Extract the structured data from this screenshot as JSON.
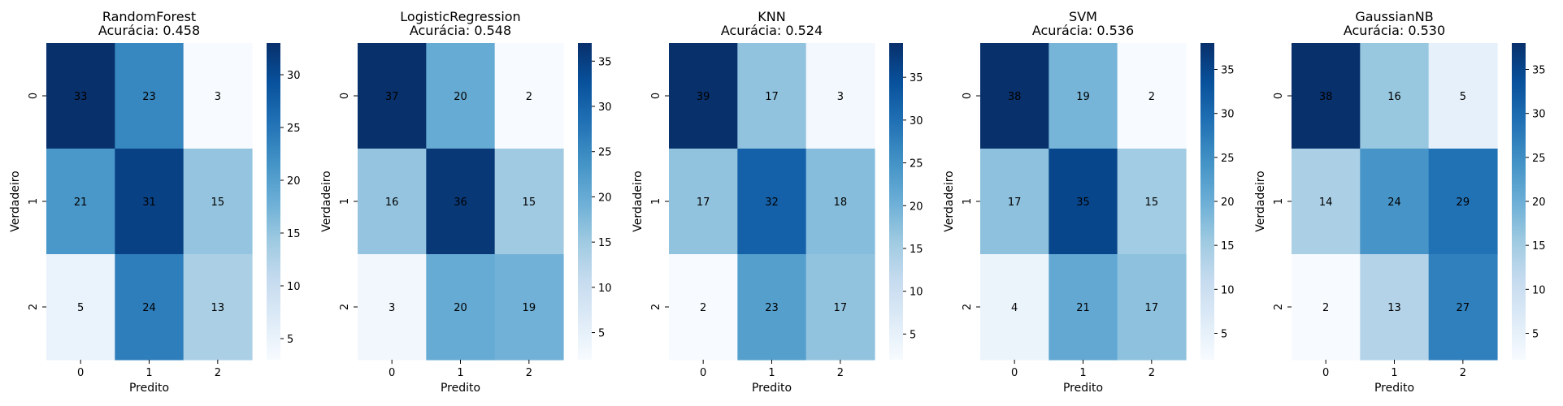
{
  "chart_data": [
    {
      "type": "heatmap",
      "model": "RandomForest",
      "accuracy_label": "Acurácia: 0.458",
      "xlabel": "Predito",
      "ylabel": "Verdadeiro",
      "x_ticks": [
        "0",
        "1",
        "2"
      ],
      "y_ticks": [
        "0",
        "1",
        "2"
      ],
      "matrix": [
        [
          33,
          23,
          3
        ],
        [
          21,
          31,
          15
        ],
        [
          5,
          24,
          13
        ]
      ],
      "vmin": 3,
      "vmax": 33,
      "colorbar_ticks": [
        5,
        10,
        15,
        20,
        25,
        30
      ],
      "colormap": "Blues"
    },
    {
      "type": "heatmap",
      "model": "LogisticRegression",
      "accuracy_label": "Acurácia: 0.548",
      "xlabel": "Predito",
      "ylabel": "Verdadeiro",
      "x_ticks": [
        "0",
        "1",
        "2"
      ],
      "y_ticks": [
        "0",
        "1",
        "2"
      ],
      "matrix": [
        [
          37,
          20,
          2
        ],
        [
          16,
          36,
          15
        ],
        [
          3,
          20,
          19
        ]
      ],
      "vmin": 2,
      "vmax": 37,
      "colorbar_ticks": [
        5,
        10,
        15,
        20,
        25,
        30,
        35
      ],
      "colormap": "Blues"
    },
    {
      "type": "heatmap",
      "model": "KNN",
      "accuracy_label": "Acurácia: 0.524",
      "xlabel": "Predito",
      "ylabel": "Verdadeiro",
      "x_ticks": [
        "0",
        "1",
        "2"
      ],
      "y_ticks": [
        "0",
        "1",
        "2"
      ],
      "matrix": [
        [
          39,
          17,
          3
        ],
        [
          17,
          32,
          18
        ],
        [
          2,
          23,
          17
        ]
      ],
      "vmin": 2,
      "vmax": 39,
      "colorbar_ticks": [
        5,
        10,
        15,
        20,
        25,
        30,
        35
      ],
      "colormap": "Blues"
    },
    {
      "type": "heatmap",
      "model": "SVM",
      "accuracy_label": "Acurácia: 0.536",
      "xlabel": "Predito",
      "ylabel": "Verdadeiro",
      "x_ticks": [
        "0",
        "1",
        "2"
      ],
      "y_ticks": [
        "0",
        "1",
        "2"
      ],
      "matrix": [
        [
          38,
          19,
          2
        ],
        [
          17,
          35,
          15
        ],
        [
          4,
          21,
          17
        ]
      ],
      "vmin": 2,
      "vmax": 38,
      "colorbar_ticks": [
        5,
        10,
        15,
        20,
        25,
        30,
        35
      ],
      "colormap": "Blues"
    },
    {
      "type": "heatmap",
      "model": "GaussianNB",
      "accuracy_label": "Acurácia: 0.530",
      "xlabel": "Predito",
      "ylabel": "Verdadeiro",
      "x_ticks": [
        "0",
        "1",
        "2"
      ],
      "y_ticks": [
        "0",
        "1",
        "2"
      ],
      "matrix": [
        [
          38,
          16,
          5
        ],
        [
          14,
          24,
          29
        ],
        [
          2,
          13,
          27
        ]
      ],
      "vmin": 2,
      "vmax": 38,
      "colorbar_ticks": [
        5,
        10,
        15,
        20,
        25,
        30,
        35
      ],
      "colormap": "Blues"
    }
  ]
}
